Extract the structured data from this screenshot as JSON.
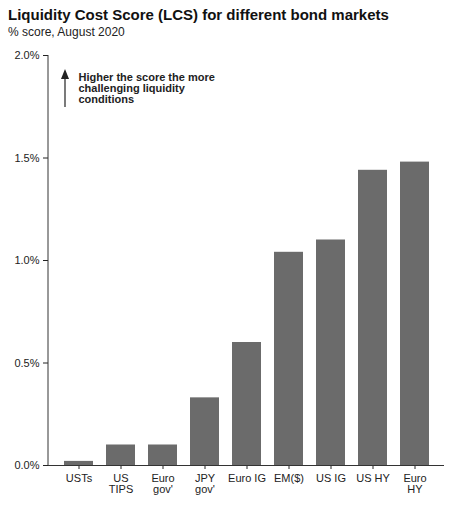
{
  "chart_data": {
    "type": "bar",
    "title": "Liquidity Cost Score (LCS) for different bond markets",
    "subtitle": "% score, August 2020",
    "annotation": "Higher the score the more\nchallenging liquidity\nconditions",
    "categories": [
      "USTs",
      "US\nTIPS",
      "Euro\ngov'",
      "JPY\ngov'",
      "Euro IG",
      "EM($)",
      "US IG",
      "US HY",
      "Euro\nHY"
    ],
    "values": [
      0.02,
      0.1,
      0.1,
      0.33,
      0.6,
      1.04,
      1.1,
      1.44,
      1.48
    ],
    "color": "#6b6b6b",
    "ylim": [
      0,
      2
    ],
    "yticks": [
      {
        "value": 0,
        "label": "0.0%"
      },
      {
        "value": 0.5,
        "label": "0.5%"
      },
      {
        "value": 1,
        "label": "1.0%"
      },
      {
        "value": 1.5,
        "label": "1.5%"
      },
      {
        "value": 2,
        "label": "2.0%"
      }
    ]
  }
}
